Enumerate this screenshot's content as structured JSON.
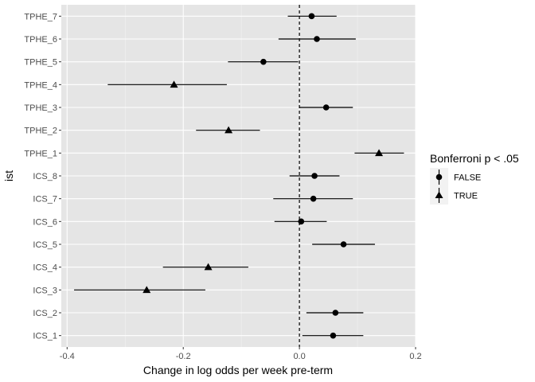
{
  "chart_data": {
    "type": "scatter",
    "title": "",
    "xlabel": "Change in log odds per week pre-term",
    "ylabel": "ist",
    "xlim": [
      -0.41,
      0.2
    ],
    "x_ticks": [
      -0.4,
      -0.2,
      0.0,
      0.2
    ],
    "x_tick_labels": [
      "-0.4",
      "-0.2",
      "0.0",
      "0.2"
    ],
    "reference_line_x": 0,
    "categories": [
      "ICS_1",
      "ICS_2",
      "ICS_3",
      "ICS_4",
      "ICS_5",
      "ICS_6",
      "ICS_7",
      "ICS_8",
      "TPHE_1",
      "TPHE_2",
      "TPHE_3",
      "TPHE_4",
      "TPHE_5",
      "TPHE_6",
      "TPHE_7"
    ],
    "points": [
      {
        "category": "ICS_1",
        "estimate": 0.058,
        "low": 0.005,
        "high": 0.11,
        "significant": false
      },
      {
        "category": "ICS_2",
        "estimate": 0.062,
        "low": 0.012,
        "high": 0.11,
        "significant": false
      },
      {
        "category": "ICS_3",
        "estimate": -0.263,
        "low": -0.388,
        "high": -0.162,
        "significant": true
      },
      {
        "category": "ICS_4",
        "estimate": -0.157,
        "low": -0.235,
        "high": -0.088,
        "significant": true
      },
      {
        "category": "ICS_5",
        "estimate": 0.076,
        "low": 0.022,
        "high": 0.13,
        "significant": false
      },
      {
        "category": "ICS_6",
        "estimate": 0.003,
        "low": -0.043,
        "high": 0.047,
        "significant": false
      },
      {
        "category": "ICS_7",
        "estimate": 0.024,
        "low": -0.045,
        "high": 0.092,
        "significant": false
      },
      {
        "category": "ICS_8",
        "estimate": 0.026,
        "low": -0.017,
        "high": 0.069,
        "significant": false
      },
      {
        "category": "TPHE_1",
        "estimate": 0.137,
        "low": 0.095,
        "high": 0.18,
        "significant": true
      },
      {
        "category": "TPHE_2",
        "estimate": -0.122,
        "low": -0.178,
        "high": -0.068,
        "significant": true
      },
      {
        "category": "TPHE_3",
        "estimate": 0.046,
        "low": 0.0,
        "high": 0.092,
        "significant": false
      },
      {
        "category": "TPHE_4",
        "estimate": -0.216,
        "low": -0.33,
        "high": -0.125,
        "significant": true
      },
      {
        "category": "TPHE_5",
        "estimate": -0.062,
        "low": -0.123,
        "high": -0.002,
        "significant": false
      },
      {
        "category": "TPHE_6",
        "estimate": 0.03,
        "low": -0.036,
        "high": 0.097,
        "significant": false
      },
      {
        "category": "TPHE_7",
        "estimate": 0.021,
        "low": -0.02,
        "high": 0.064,
        "significant": false
      }
    ],
    "legend": {
      "title": "Bonferroni p < .05",
      "position": "right",
      "entries": [
        {
          "label": "FALSE",
          "shape": "circle"
        },
        {
          "label": "TRUE",
          "shape": "triangle"
        }
      ]
    },
    "grid": true,
    "colors": {
      "panel_background": "#e5e5e5",
      "grid_major": "#ffffff",
      "grid_minor": "#f2f2f2",
      "points": "#000000",
      "tick_text": "#4d4d4d"
    }
  }
}
